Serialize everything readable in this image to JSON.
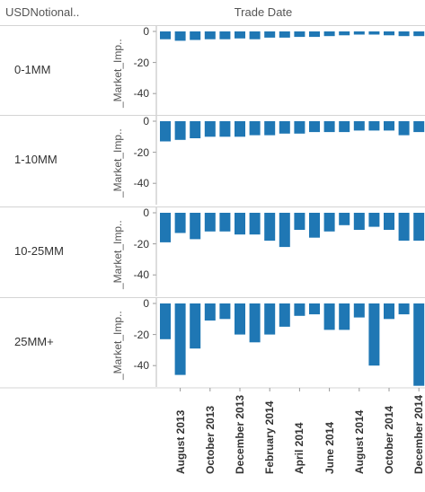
{
  "header": {
    "row_dimension": "USDNotional..",
    "column_title": "Trade Date"
  },
  "chart_data": {
    "type": "bar",
    "xlabel": "Trade Date",
    "ylabel": "_Market_Imp..",
    "ylim": [
      -55,
      2
    ],
    "yticks": [
      0,
      -20,
      -40
    ],
    "x_tick_labels": [
      "August 2013",
      "October 2013",
      "December 2013",
      "February 2014",
      "April 2014",
      "June 2014",
      "August 2014",
      "October 2014",
      "December 2014"
    ],
    "categories": [
      "Jul 2013",
      "Aug 2013",
      "Sep 2013",
      "Oct 2013",
      "Nov 2013",
      "Dec 2013",
      "Jan 2014",
      "Feb 2014",
      "Mar 2014",
      "Apr 2014",
      "May 2014",
      "Jun 2014",
      "Jul 2014",
      "Aug 2014",
      "Sep 2014",
      "Oct 2014",
      "Nov 2014",
      "Dec 2014"
    ],
    "color": "#1f77b4",
    "panels": [
      {
        "label": "0-1MM",
        "values": [
          -5,
          -6,
          -5.5,
          -5,
          -5,
          -4.5,
          -5,
          -4,
          -4,
          -3.5,
          -3.5,
          -3,
          -2.5,
          -2,
          -2,
          -2.5,
          -3,
          -3
        ]
      },
      {
        "label": "1-10MM",
        "values": [
          -13,
          -12,
          -11,
          -10,
          -10,
          -10,
          -9,
          -9,
          -8,
          -8,
          -7,
          -7,
          -7,
          -6,
          -6,
          -6,
          -9,
          -7
        ]
      },
      {
        "label": "10-25MM",
        "values": [
          -19,
          -13,
          -17,
          -12,
          -12,
          -14,
          -14,
          -18,
          -22,
          -11,
          -16,
          -12,
          -8,
          -11,
          -9,
          -11,
          -18,
          -18
        ]
      },
      {
        "label": "25MM+",
        "values": [
          -23,
          -46,
          -29,
          -11,
          -10,
          -20,
          -25,
          -20,
          -15,
          -8,
          -7,
          -17,
          -17,
          -9,
          -40,
          -10,
          -7,
          -53
        ]
      }
    ]
  }
}
